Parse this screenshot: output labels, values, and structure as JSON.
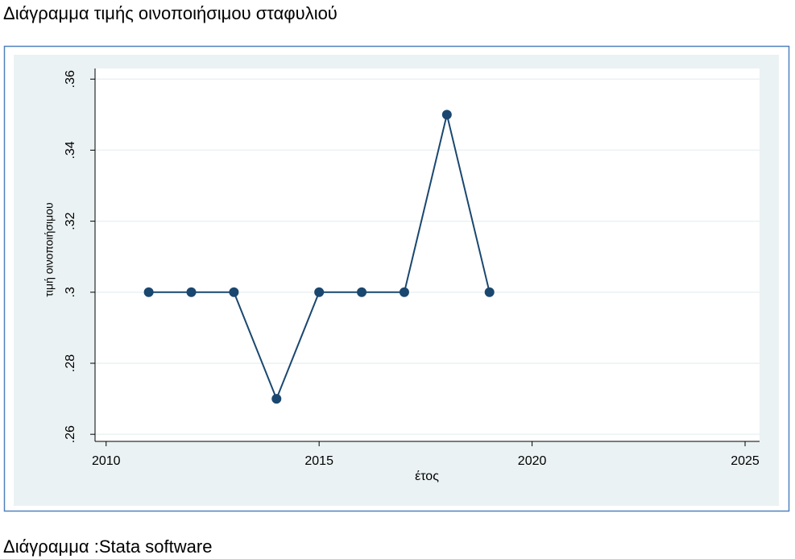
{
  "chart_data": {
    "type": "line",
    "title": "Διάγραμμα τιμής οινοποιήσιμου σταφυλιού",
    "caption": "Διάγραμμα :Stata software",
    "xlabel": "έτος",
    "ylabel": "τιμή οινοποιήσιμου",
    "x": [
      2011,
      2012,
      2013,
      2014,
      2015,
      2016,
      2017,
      2018,
      2019
    ],
    "series": [
      {
        "color": "#1a476f",
        "values": [
          0.3,
          0.3,
          0.3,
          0.27,
          0.3,
          0.3,
          0.3,
          0.35,
          0.3
        ]
      }
    ],
    "xlim": [
      2009.74,
      2025.34
    ],
    "xticks": [
      2010,
      2015,
      2020,
      2025
    ],
    "ylim": [
      0.258,
      0.363
    ],
    "yticks": [
      {
        "value": 0.26,
        "label": ".26"
      },
      {
        "value": 0.28,
        "label": ".28"
      },
      {
        "value": 0.3,
        "label": ".3"
      },
      {
        "value": 0.32,
        "label": ".32"
      },
      {
        "value": 0.34,
        "label": ".34"
      },
      {
        "value": 0.36,
        "label": ".36"
      }
    ],
    "grid": true
  }
}
